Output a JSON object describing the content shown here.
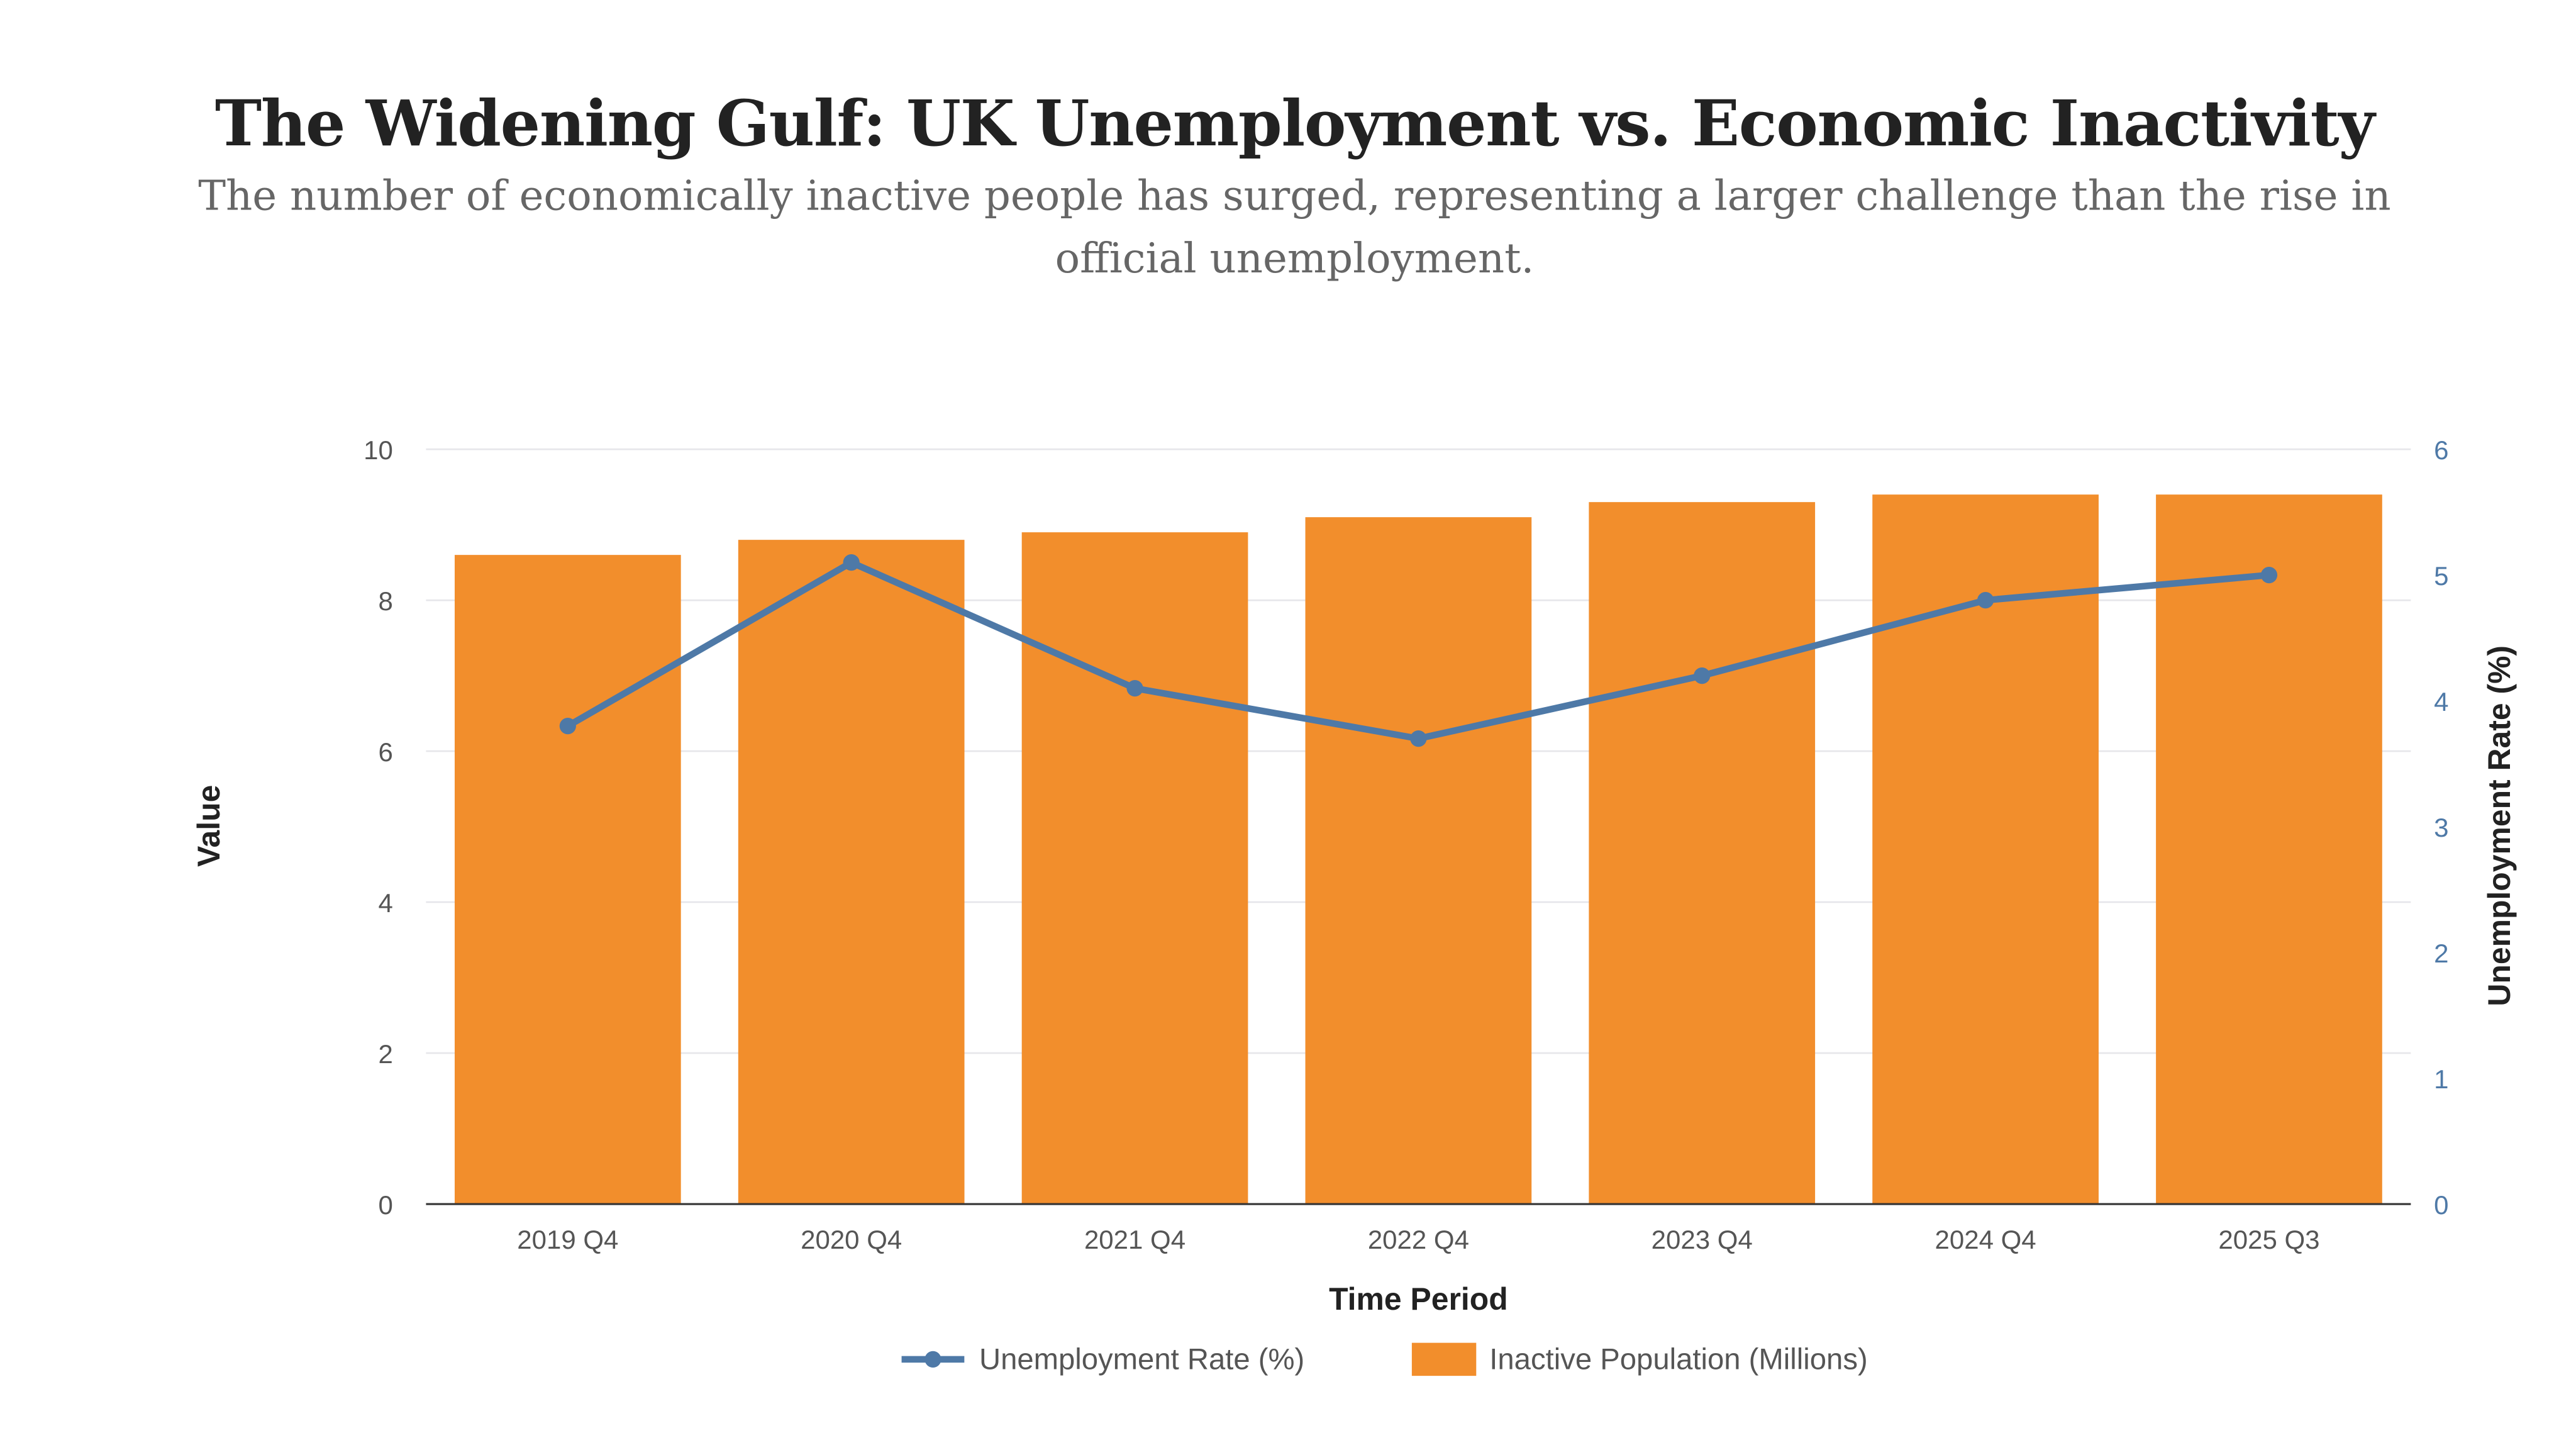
{
  "chart_data": {
    "type": "bar",
    "title": "The Widening Gulf: UK Unemployment vs. Economic Inactivity",
    "subtitle": "The number of economically inactive people has surged, representing a larger challenge than the rise in official unemployment.",
    "categories": [
      "2019 Q4",
      "2020 Q4",
      "2021 Q4",
      "2022 Q4",
      "2023 Q4",
      "2024 Q4",
      "2025 Q3"
    ],
    "series": [
      {
        "name": "Unemployment Rate (%)",
        "type": "line",
        "axis": "right",
        "color": "#4e79a7",
        "values": [
          3.8,
          5.1,
          4.1,
          3.7,
          4.2,
          4.8,
          5.0
        ]
      },
      {
        "name": "Inactive Population (Millions)",
        "type": "bar",
        "axis": "left",
        "color": "#f28e2c",
        "values": [
          8.6,
          8.8,
          8.9,
          9.1,
          9.3,
          9.4,
          9.4
        ]
      }
    ],
    "xlabel": "Time Period",
    "ylabel": "Value",
    "y2label": "Unemployment Rate (%)",
    "ylim": [
      0,
      10
    ],
    "y2lim": [
      0,
      6
    ],
    "yticks": [
      "0",
      "2",
      "4",
      "6",
      "8",
      "10"
    ],
    "y2ticks": [
      "0",
      "1",
      "2",
      "3",
      "4",
      "5",
      "6"
    ],
    "grid": true,
    "legend_position": "bottom"
  }
}
